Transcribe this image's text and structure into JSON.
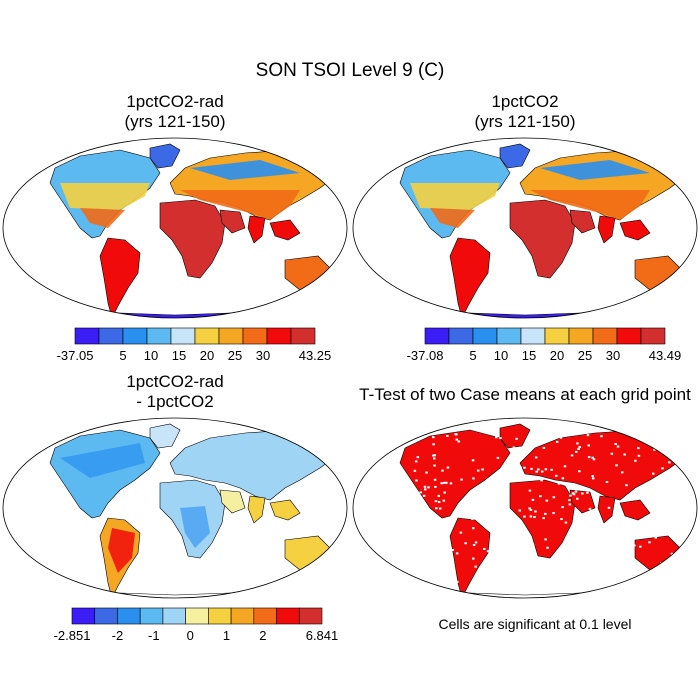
{
  "title": "SON TSOI Level 9 (C)",
  "panels": [
    {
      "id": "case1",
      "title_line1": "1pctCO2-rad",
      "title_line2": "(yrs 121-150)",
      "colorbar": {
        "colors": [
          "#3a1ef5",
          "#3c6ae6",
          "#2a90f0",
          "#5cbaf0",
          "#c8e4f8",
          "#f5d040",
          "#f5a623",
          "#f26b16",
          "#f00a0a",
          "#d32f2f"
        ],
        "labels": [
          "-37.05",
          "5",
          "10",
          "15",
          "20",
          "25",
          "30",
          "43.25"
        ]
      }
    },
    {
      "id": "case2",
      "title_line1": "1pctCO2",
      "title_line2": "(yrs 121-150)",
      "colorbar": {
        "colors": [
          "#3a1ef5",
          "#3c6ae6",
          "#2a90f0",
          "#5cbaf0",
          "#c8e4f8",
          "#f5d040",
          "#f5a623",
          "#f26b16",
          "#f00a0a",
          "#d32f2f"
        ],
        "labels": [
          "-37.08",
          "5",
          "10",
          "15",
          "20",
          "25",
          "30",
          "43.49"
        ]
      }
    },
    {
      "id": "diff",
      "title_line1": "1pctCO2-rad",
      "title_line2": "- 1pctCO2",
      "colorbar": {
        "colors": [
          "#3a1ef5",
          "#3c6ae6",
          "#2a90f0",
          "#5cbaf0",
          "#9fd4f5",
          "#f5f0a0",
          "#f5d040",
          "#f5a623",
          "#f26b16",
          "#f00a0a",
          "#d32f2f"
        ],
        "labels": [
          "-2.851",
          "-2",
          "-1",
          "0",
          "1",
          "2",
          "6.841"
        ]
      }
    },
    {
      "id": "ttest",
      "title_line1": "T-Test of two Case means at each grid point",
      "note": "Cells are significant at 0.1 level"
    }
  ]
}
